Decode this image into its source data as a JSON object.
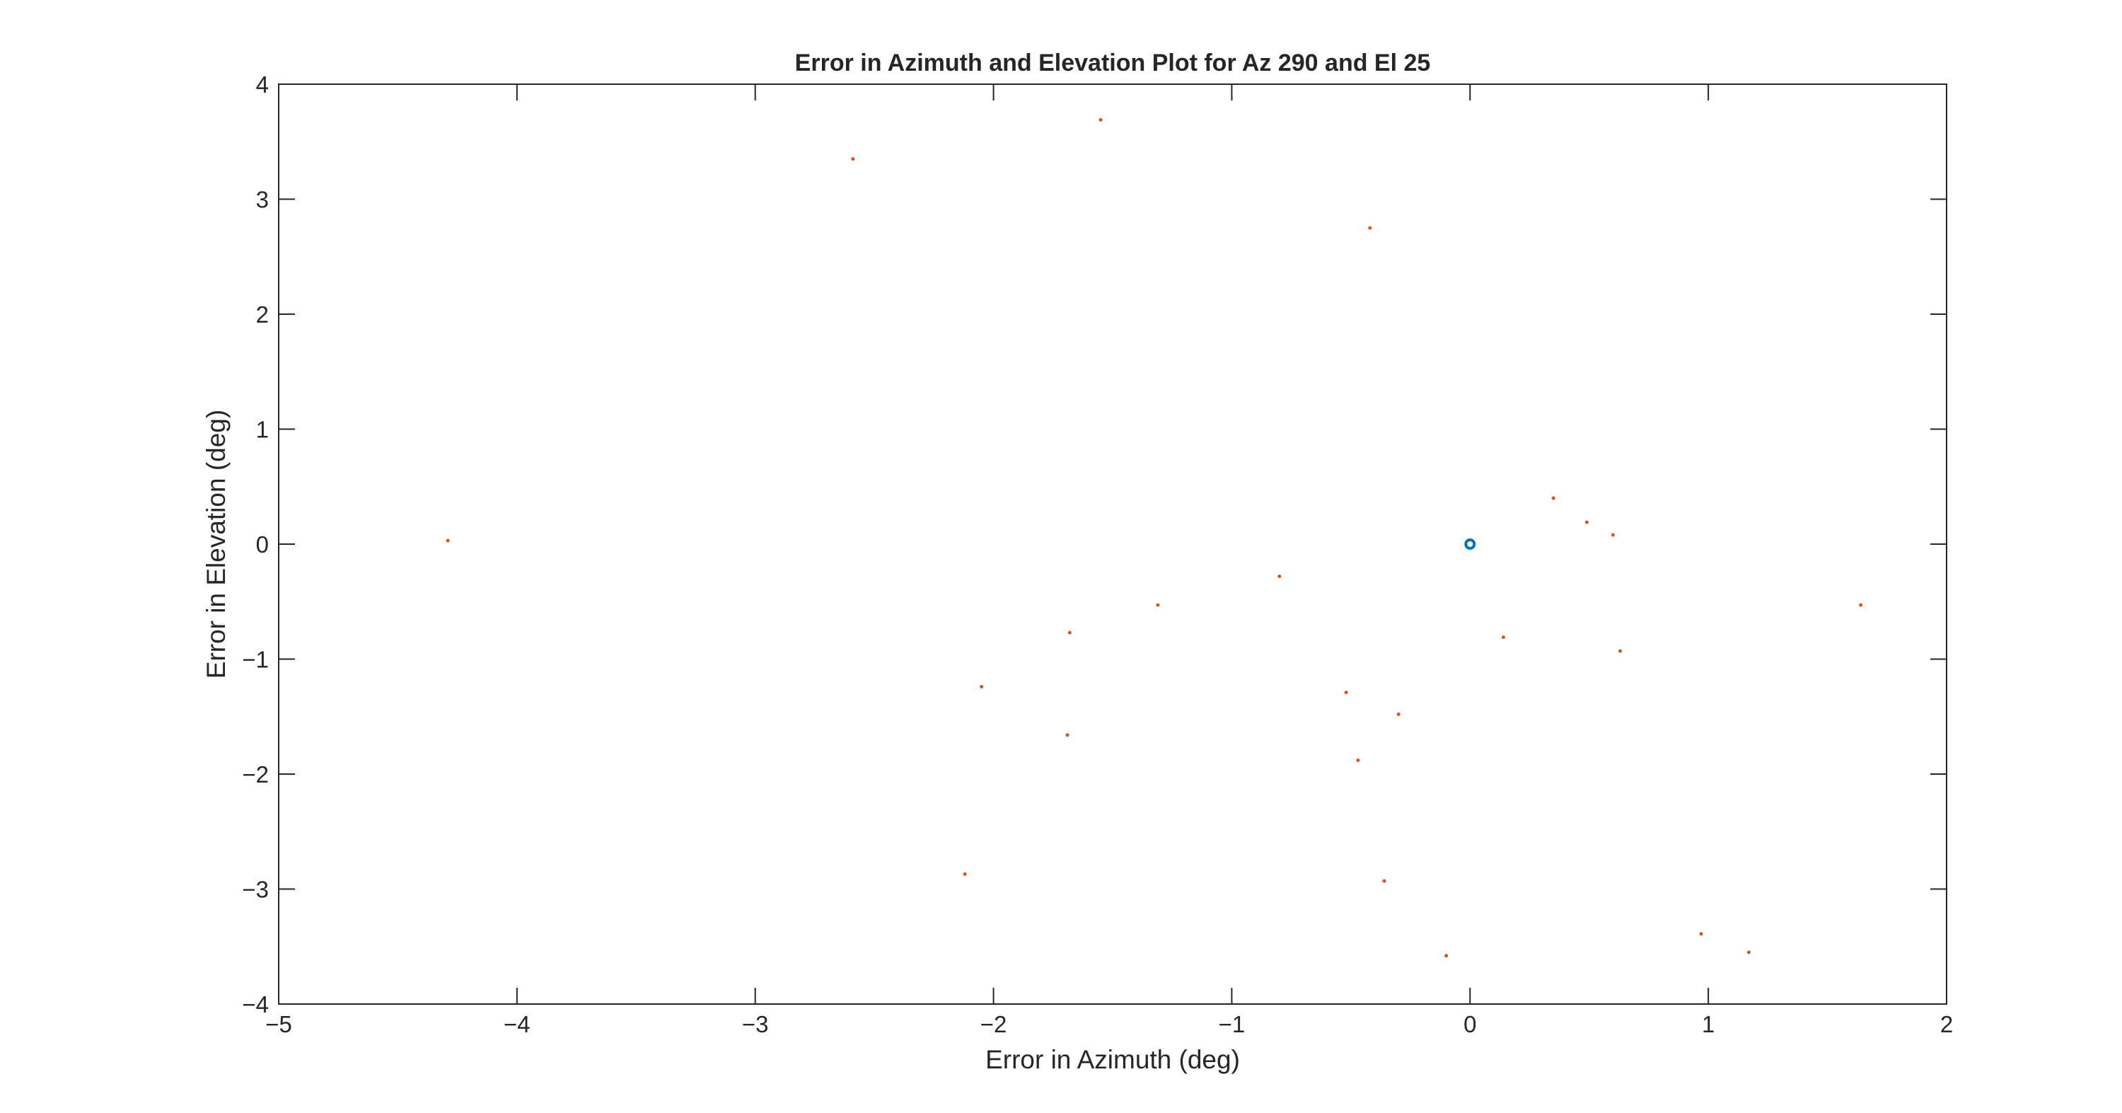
{
  "chart_data": {
    "type": "scatter",
    "title": "Error in Azimuth and Elevation Plot for Az 290 and El 25",
    "xlabel": "Error in Azimuth (deg)",
    "ylabel": "Error in Elevation (deg)",
    "xlim": [
      -5,
      2
    ],
    "ylim": [
      -4,
      4
    ],
    "xticks": [
      "-5",
      "-4",
      "-3",
      "-2",
      "-1",
      "0",
      "1",
      "2"
    ],
    "yticks": [
      "-4",
      "-3",
      "-2",
      "-1",
      "0",
      "1",
      "2",
      "3",
      "4"
    ],
    "grid": false,
    "series": [
      {
        "marker": "circle",
        "color": "#0072BD",
        "points": [
          {
            "x": 0,
            "y": 0
          }
        ]
      },
      {
        "marker": "point",
        "color": "#D95319",
        "points": [
          {
            "x": -4.29,
            "y": 0.03
          },
          {
            "x": -2.59,
            "y": 3.35
          },
          {
            "x": -1.55,
            "y": 3.69
          },
          {
            "x": -0.42,
            "y": 2.75
          },
          {
            "x": -2.12,
            "y": -2.87
          },
          {
            "x": -2.05,
            "y": -1.24
          },
          {
            "x": -1.68,
            "y": -0.77
          },
          {
            "x": -1.69,
            "y": -1.66
          },
          {
            "x": -1.31,
            "y": -0.53
          },
          {
            "x": -0.8,
            "y": -0.28
          },
          {
            "x": -0.52,
            "y": -1.29
          },
          {
            "x": -0.47,
            "y": -1.88
          },
          {
            "x": -0.3,
            "y": -1.48
          },
          {
            "x": -0.36,
            "y": -2.93
          },
          {
            "x": -0.1,
            "y": -3.58
          },
          {
            "x": 0.14,
            "y": -0.81
          },
          {
            "x": 0.35,
            "y": 0.4
          },
          {
            "x": 0.49,
            "y": 0.19
          },
          {
            "x": 0.6,
            "y": 0.08
          },
          {
            "x": 0.63,
            "y": -0.93
          },
          {
            "x": 0.97,
            "y": -3.39
          },
          {
            "x": 1.17,
            "y": -3.55
          },
          {
            "x": 1.64,
            "y": -0.53
          }
        ]
      }
    ]
  }
}
